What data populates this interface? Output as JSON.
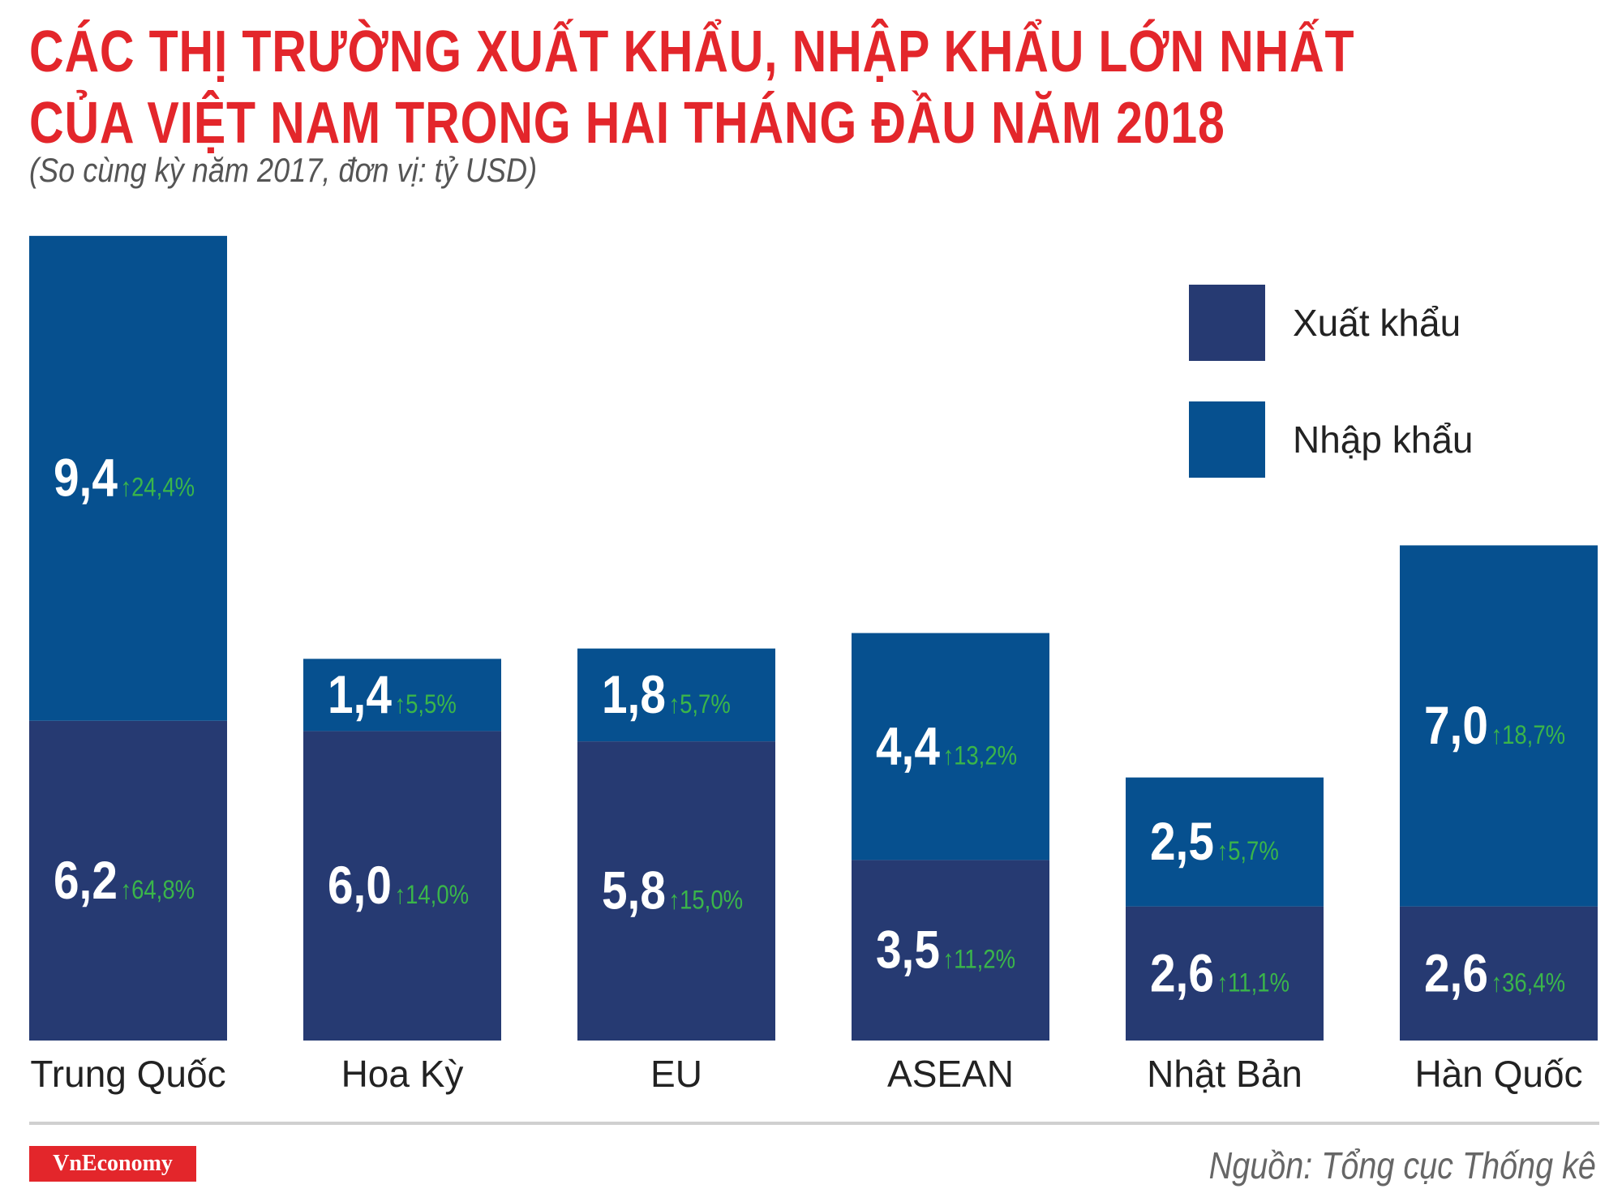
{
  "header": {
    "title_line1": "CÁC THỊ TRƯỜNG XUẤT KHẨU, NHẬP KHẨU LỚN NHẤT",
    "title_line2": "CỦA VIỆT NAM TRONG HAI THÁNG ĐẦU NĂM 2018",
    "subtitle": "(So cùng kỳ năm 2017, đơn vị: tỷ USD)"
  },
  "footer": {
    "logo": "VnEconomy",
    "source": "Nguồn: Tổng cục Thống kê"
  },
  "colors": {
    "export": "#263a72",
    "import": "#06508f",
    "growth": "#3ab54a",
    "title": "#e3262b"
  },
  "chart_data": {
    "type": "bar",
    "stacked": true,
    "categories": [
      "Trung Quốc",
      "Hoa Kỳ",
      "EU",
      "ASEAN",
      "Nhật Bản",
      "Hàn Quốc"
    ],
    "series": [
      {
        "name": "Xuất khẩu",
        "values": [
          6.2,
          6.0,
          5.8,
          3.5,
          2.6,
          2.6
        ],
        "value_labels": [
          "6,2",
          "6,0",
          "5,8",
          "3,5",
          "2,6",
          "2,6"
        ],
        "growth_labels": [
          "↑64,8%",
          "↑14,0%",
          "↑15,0%",
          "↑11,2%",
          "↑11,1%",
          "↑36,4%"
        ]
      },
      {
        "name": "Nhập khẩu",
        "values": [
          9.4,
          1.4,
          1.8,
          4.4,
          2.5,
          7.0
        ],
        "value_labels": [
          "9,4",
          "1,4",
          "1,8",
          "4,4",
          "2,5",
          "7,0"
        ],
        "growth_labels": [
          "↑24,4%",
          "↑5,5%",
          "↑5,7%",
          "↑13,2%",
          "↑5,7%",
          "↑18,7%"
        ]
      }
    ],
    "legend_position": "top-right",
    "grid": false
  }
}
